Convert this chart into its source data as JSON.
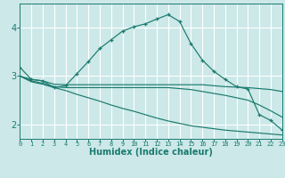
{
  "title": "",
  "xlabel": "Humidex (Indice chaleur)",
  "ylabel": "",
  "bg_color": "#cce8e8",
  "line_color": "#1a7a6e",
  "grid_color": "#ffffff",
  "x": [
    0,
    1,
    2,
    3,
    4,
    5,
    6,
    7,
    8,
    9,
    10,
    11,
    12,
    13,
    14,
    15,
    16,
    17,
    18,
    19,
    20,
    21,
    22,
    23
  ],
  "series1": [
    3.18,
    2.93,
    2.9,
    2.76,
    2.8,
    3.05,
    3.3,
    3.57,
    3.75,
    3.93,
    4.02,
    4.08,
    4.18,
    4.27,
    4.13,
    3.67,
    3.33,
    3.1,
    2.93,
    2.78,
    2.73,
    2.2,
    2.08,
    1.88
  ],
  "series2": [
    3.0,
    2.93,
    2.9,
    2.83,
    2.82,
    2.82,
    2.82,
    2.82,
    2.82,
    2.82,
    2.82,
    2.82,
    2.82,
    2.82,
    2.82,
    2.82,
    2.82,
    2.8,
    2.78,
    2.77,
    2.76,
    2.74,
    2.72,
    2.68
  ],
  "series3": [
    3.0,
    2.9,
    2.85,
    2.78,
    2.76,
    2.76,
    2.76,
    2.76,
    2.76,
    2.76,
    2.76,
    2.76,
    2.76,
    2.76,
    2.74,
    2.72,
    2.68,
    2.64,
    2.6,
    2.55,
    2.5,
    2.4,
    2.28,
    2.15
  ],
  "series4": [
    3.0,
    2.88,
    2.83,
    2.76,
    2.7,
    2.62,
    2.55,
    2.48,
    2.4,
    2.33,
    2.27,
    2.2,
    2.13,
    2.07,
    2.02,
    1.97,
    1.94,
    1.91,
    1.88,
    1.86,
    1.84,
    1.82,
    1.8,
    1.78
  ],
  "xlim": [
    0,
    23
  ],
  "ylim": [
    1.7,
    4.5
  ],
  "xticks": [
    0,
    1,
    2,
    3,
    4,
    5,
    6,
    7,
    8,
    9,
    10,
    11,
    12,
    13,
    14,
    15,
    16,
    17,
    18,
    19,
    20,
    21,
    22,
    23
  ],
  "yticks": [
    2,
    3,
    4
  ]
}
